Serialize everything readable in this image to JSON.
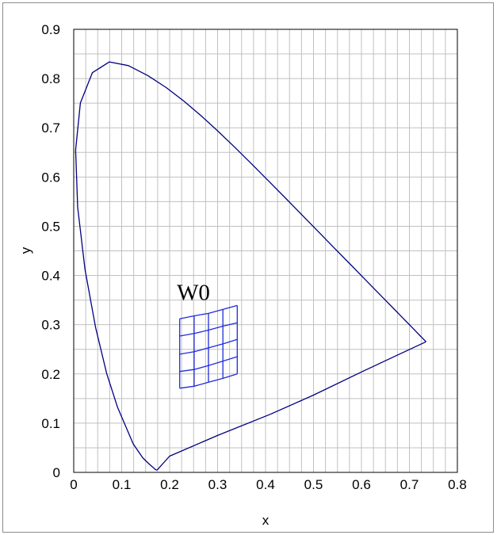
{
  "chart_data": {
    "type": "line",
    "title": "",
    "xlabel": "x",
    "ylabel": "y",
    "xlim": [
      0,
      0.8
    ],
    "ylim": [
      0,
      0.9
    ],
    "x_ticks": [
      "0",
      "0.1",
      "0.2",
      "0.3",
      "0.4",
      "0.5",
      "0.6",
      "0.7",
      "0.8"
    ],
    "y_ticks": [
      "0",
      "0.1",
      "0.2",
      "0.3",
      "0.4",
      "0.5",
      "0.6",
      "0.7",
      "0.8",
      "0.9"
    ],
    "grid": true,
    "grid_minor_x": 0.025,
    "grid_minor_y": 0.05,
    "annotation": {
      "text": "W0",
      "x": 0.215,
      "y": 0.35
    },
    "series": [
      {
        "kind": "spectral-locus",
        "color": "#000080",
        "points": [
          [
            0.1741,
            0.005
          ],
          [
            0.1738,
            0.0049
          ],
          [
            0.1733,
            0.0048
          ],
          [
            0.1726,
            0.0048
          ],
          [
            0.1714,
            0.0051
          ],
          [
            0.1689,
            0.0069
          ],
          [
            0.1644,
            0.0109
          ],
          [
            0.1566,
            0.0177
          ],
          [
            0.144,
            0.0297
          ],
          [
            0.1241,
            0.0578
          ],
          [
            0.0913,
            0.1327
          ],
          [
            0.0687,
            0.2007
          ],
          [
            0.0454,
            0.295
          ],
          [
            0.0235,
            0.4127
          ],
          [
            0.0082,
            0.5384
          ],
          [
            0.0039,
            0.6548
          ],
          [
            0.0139,
            0.7502
          ],
          [
            0.0389,
            0.812
          ],
          [
            0.0743,
            0.8338
          ],
          [
            0.1142,
            0.8262
          ],
          [
            0.1547,
            0.8059
          ],
          [
            0.1929,
            0.7816
          ],
          [
            0.2296,
            0.7543
          ],
          [
            0.2658,
            0.7243
          ],
          [
            0.3016,
            0.6923
          ],
          [
            0.3373,
            0.6589
          ],
          [
            0.3731,
            0.6245
          ],
          [
            0.4087,
            0.5896
          ],
          [
            0.4441,
            0.5547
          ],
          [
            0.4788,
            0.5202
          ],
          [
            0.5125,
            0.4866
          ],
          [
            0.5448,
            0.4544
          ],
          [
            0.5752,
            0.4242
          ],
          [
            0.6029,
            0.3965
          ],
          [
            0.627,
            0.3725
          ],
          [
            0.6482,
            0.3514
          ],
          [
            0.6658,
            0.334
          ],
          [
            0.6801,
            0.3197
          ],
          [
            0.6915,
            0.3083
          ],
          [
            0.7006,
            0.2993
          ],
          [
            0.7079,
            0.292
          ],
          [
            0.714,
            0.2859
          ],
          [
            0.719,
            0.2809
          ],
          [
            0.723,
            0.277
          ],
          [
            0.726,
            0.274
          ],
          [
            0.7283,
            0.2717
          ],
          [
            0.73,
            0.27
          ],
          [
            0.7311,
            0.2689
          ],
          [
            0.732,
            0.268
          ],
          [
            0.7327,
            0.2673
          ],
          [
            0.7334,
            0.2666
          ],
          [
            0.734,
            0.266
          ],
          [
            0.7347,
            0.2653
          ]
        ]
      },
      {
        "kind": "purple-line",
        "color": "#000080",
        "points": [
          [
            0.7347,
            0.2653
          ],
          [
            0.69,
            0.245
          ],
          [
            0.6,
            0.204
          ],
          [
            0.5,
            0.157
          ],
          [
            0.41,
            0.118
          ],
          [
            0.3,
            0.075
          ],
          [
            0.2,
            0.033
          ],
          [
            0.1741,
            0.005
          ]
        ]
      }
    ],
    "grid_w0": {
      "color": "#1f2bd9",
      "rows": [
        [
          [
            0.221,
            0.171
          ],
          [
            0.251,
            0.175
          ],
          [
            0.281,
            0.183
          ],
          [
            0.311,
            0.191
          ],
          [
            0.341,
            0.2
          ]
        ],
        [
          [
            0.221,
            0.205
          ],
          [
            0.251,
            0.209
          ],
          [
            0.281,
            0.217
          ],
          [
            0.311,
            0.226
          ],
          [
            0.341,
            0.235
          ]
        ],
        [
          [
            0.221,
            0.24
          ],
          [
            0.251,
            0.245
          ],
          [
            0.281,
            0.253
          ],
          [
            0.311,
            0.261
          ],
          [
            0.341,
            0.27
          ]
        ],
        [
          [
            0.221,
            0.277
          ],
          [
            0.251,
            0.282
          ],
          [
            0.281,
            0.289
          ],
          [
            0.311,
            0.297
          ],
          [
            0.341,
            0.304
          ]
        ],
        [
          [
            0.221,
            0.312
          ],
          [
            0.251,
            0.318
          ],
          [
            0.281,
            0.323
          ],
          [
            0.311,
            0.331
          ],
          [
            0.341,
            0.339
          ]
        ]
      ]
    }
  }
}
